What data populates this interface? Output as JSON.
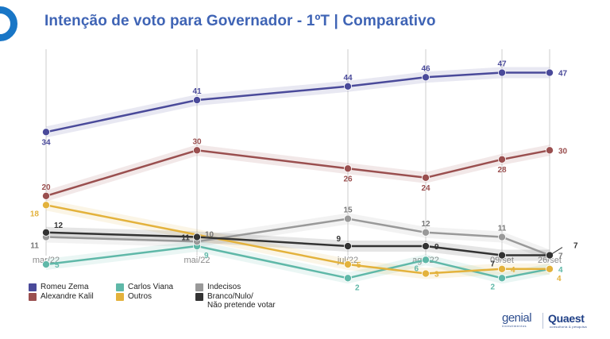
{
  "title": "Intenção de voto para Governador - 1ºT | Comparativo",
  "chart_data": {
    "type": "line",
    "categories": [
      "mar/22",
      "mai/22",
      "jul/22",
      "ago/22",
      "09/set",
      "26/set"
    ],
    "ylim": [
      0,
      55
    ],
    "grid": "vertical",
    "series": [
      {
        "name": "Romeu Zema",
        "color": "#4a4a9a",
        "values": [
          34,
          41,
          44,
          46,
          47,
          47
        ]
      },
      {
        "name": "Alexandre Kalil",
        "color": "#9a4f4f",
        "values": [
          20,
          30,
          26,
          24,
          28,
          30
        ]
      },
      {
        "name": "Carlos Viana",
        "color": "#5fb8a8",
        "values": [
          5,
          9,
          2,
          6,
          2,
          4
        ]
      },
      {
        "name": "Outros",
        "color": "#e3b23c",
        "values": [
          18,
          null,
          5,
          3,
          4,
          4
        ]
      },
      {
        "name": "Indecisos",
        "color": "#999999",
        "values": [
          11,
          10,
          15,
          12,
          11,
          7
        ]
      },
      {
        "name": "Branco/Nulo/\nNão pretende votar",
        "color": "#333333",
        "values": [
          12,
          11,
          9,
          9,
          7,
          7
        ]
      }
    ],
    "data_labels": [
      {
        "series": 0,
        "index": 0,
        "text": "34",
        "pos": "below"
      },
      {
        "series": 0,
        "index": 1,
        "text": "41",
        "pos": "above"
      },
      {
        "series": 0,
        "index": 2,
        "text": "44",
        "pos": "above"
      },
      {
        "series": 0,
        "index": 3,
        "text": "46",
        "pos": "above"
      },
      {
        "series": 0,
        "index": 4,
        "text": "47",
        "pos": "above"
      },
      {
        "series": 0,
        "index": 5,
        "text": "47",
        "pos": "right"
      },
      {
        "series": 1,
        "index": 0,
        "text": "20",
        "pos": "above"
      },
      {
        "series": 1,
        "index": 1,
        "text": "30",
        "pos": "above"
      },
      {
        "series": 1,
        "index": 2,
        "text": "26",
        "pos": "below"
      },
      {
        "series": 1,
        "index": 3,
        "text": "24",
        "pos": "below"
      },
      {
        "series": 1,
        "index": 4,
        "text": "28",
        "pos": "below"
      },
      {
        "series": 1,
        "index": 5,
        "text": "30",
        "pos": "right"
      },
      {
        "series": 2,
        "index": 0,
        "text": "5",
        "pos": "right"
      },
      {
        "series": 2,
        "index": 1,
        "text": "9",
        "pos": "below-right"
      },
      {
        "series": 2,
        "index": 2,
        "text": "2",
        "pos": "below-right"
      },
      {
        "series": 2,
        "index": 3,
        "text": "6",
        "pos": "below-left"
      },
      {
        "series": 2,
        "index": 4,
        "text": "2",
        "pos": "below-left"
      },
      {
        "series": 2,
        "index": 5,
        "text": "4",
        "pos": "right"
      },
      {
        "series": 3,
        "index": 0,
        "text": "18",
        "pos": "below-left"
      },
      {
        "series": 3,
        "index": 2,
        "text": "5",
        "pos": "right"
      },
      {
        "series": 3,
        "index": 3,
        "text": "3",
        "pos": "right"
      },
      {
        "series": 3,
        "index": 4,
        "text": "4",
        "pos": "right"
      },
      {
        "series": 3,
        "index": 5,
        "text": "4",
        "pos": "below-right"
      },
      {
        "series": 4,
        "index": 0,
        "text": "11",
        "pos": "below-left"
      },
      {
        "series": 4,
        "index": 1,
        "text": "10",
        "pos": "above-right"
      },
      {
        "series": 4,
        "index": 2,
        "text": "15",
        "pos": "above"
      },
      {
        "series": 4,
        "index": 3,
        "text": "12",
        "pos": "above"
      },
      {
        "series": 4,
        "index": 4,
        "text": "11",
        "pos": "above"
      },
      {
        "series": 4,
        "index": 5,
        "text": "7",
        "pos": "right"
      },
      {
        "series": 5,
        "index": 0,
        "text": "12",
        "pos": "above-right"
      },
      {
        "series": 5,
        "index": 1,
        "text": "11",
        "pos": "left"
      },
      {
        "series": 5,
        "index": 2,
        "text": "9",
        "pos": "above-left"
      },
      {
        "series": 5,
        "index": 3,
        "text": "9",
        "pos": "right"
      },
      {
        "series": 5,
        "index": 4,
        "text": "7",
        "pos": "below-left"
      },
      {
        "series": 5,
        "index": 5,
        "text": "7",
        "pos": "above-right"
      }
    ]
  },
  "legend": {
    "col1": [
      {
        "label": "Romeu Zema",
        "color": "#4a4a9a"
      },
      {
        "label": "Alexandre Kalil",
        "color": "#9a4f4f"
      }
    ],
    "col2": [
      {
        "label": "Carlos Viana",
        "color": "#5fb8a8"
      },
      {
        "label": "Outros",
        "color": "#e3b23c"
      }
    ],
    "col3": [
      {
        "label": "Indecisos",
        "color": "#999999"
      },
      {
        "label": "Branco/Nulo/\nNão pretende votar",
        "color": "#333333"
      }
    ]
  },
  "brand": {
    "genial": "genial",
    "genial_sub": "investimentos",
    "quaest": "Quaest",
    "quaest_sub": "consultoria & pesquisa"
  }
}
